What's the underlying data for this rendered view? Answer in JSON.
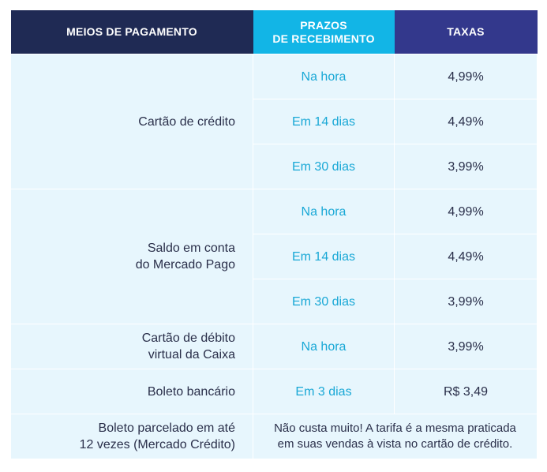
{
  "headers": {
    "method": "MEIOS DE PAGAMENTO",
    "term_line1": "PRAZOS",
    "term_line2": "DE RECEBIMENTO",
    "fee": "TAXAS"
  },
  "rows": {
    "credit_card": {
      "method": "Cartão de crédito",
      "items": [
        {
          "term": "Na hora",
          "fee": "4,99%"
        },
        {
          "term": "Em 14 dias",
          "fee": "4,49%"
        },
        {
          "term": "Em 30 dias",
          "fee": "3,99%"
        }
      ]
    },
    "balance": {
      "method_line1": "Saldo em conta",
      "method_line2": "do Mercado Pago",
      "items": [
        {
          "term": "Na hora",
          "fee": "4,99%"
        },
        {
          "term": "Em 14 dias",
          "fee": "4,49%"
        },
        {
          "term": "Em 30 dias",
          "fee": "3,99%"
        }
      ]
    },
    "debit_caixa": {
      "method_line1": "Cartão de débito",
      "method_line2": "virtual da Caixa",
      "term": "Na hora",
      "fee": "3,99%"
    },
    "boleto": {
      "method": "Boleto bancário",
      "term": "Em 3 dias",
      "fee": "R$ 3,49"
    },
    "boleto_parcelado": {
      "method_line1": "Boleto parcelado em até",
      "method_line2": "12 vezes (Mercado Crédito)",
      "note_line1": "Não custa muito! A tarifa é a mesma praticada",
      "note_line2": "em suas vendas à vista no cartão de crédito."
    }
  },
  "colors": {
    "header_method": "#1f2a54",
    "header_term": "#12b5e6",
    "header_fee": "#33388c",
    "cell_background": "#e7f6fd",
    "term_text": "#19a8d6",
    "body_text": "#2a2f4a"
  }
}
